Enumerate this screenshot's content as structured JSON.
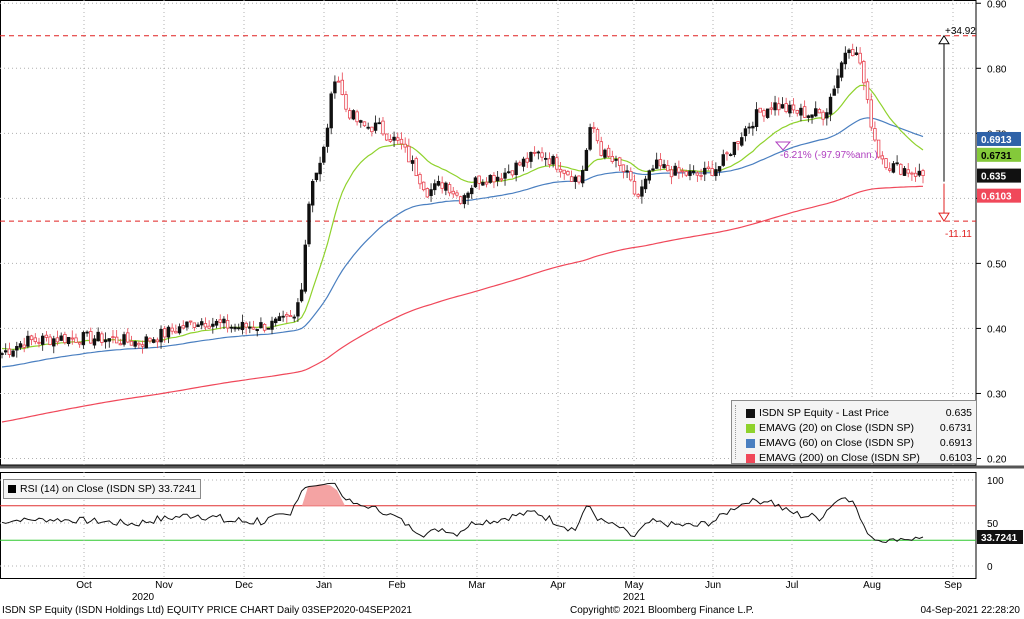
{
  "footer": {
    "left": "ISDN SP Equity (ISDN Holdings Ltd) EQUITY PRICE CHART  Daily 03SEP2020-04SEP2021",
    "center": "Copyright© 2021 Bloomberg Finance L.P.",
    "right": "04-Sep-2021 22:28:20"
  },
  "legend": {
    "items": [
      {
        "label": "ISDN SP Equity - Last Price",
        "value": "0.635",
        "color": "#111111"
      },
      {
        "label": "EMAVG (20)  on Close (ISDN SP)",
        "value": "0.6731",
        "color": "#8fd22c"
      },
      {
        "label": "EMAVG (60)  on Close (ISDN SP)",
        "value": "0.6913",
        "color": "#4a7fc0"
      },
      {
        "label": "EMAVG (200)  on Close (ISDN SP)",
        "value": "0.6103",
        "color": "#f0485a"
      }
    ]
  },
  "rsi_legend": "RSI (14)  on Close (ISDN SP) 33.7241",
  "annotations": {
    "upper_pct": "+34.92",
    "lower_pct": "-11.11",
    "trend_text": "-6.21% (-97.97%ann.)"
  },
  "price_tags": [
    {
      "text": "0.6913",
      "value": 0.6913,
      "bg": "#2f62a8",
      "fg": "#ffffff"
    },
    {
      "text": "0.6731",
      "value": 0.6731,
      "bg": "#84c93a",
      "fg": "#000000"
    },
    {
      "text": "0.635",
      "value": 0.635,
      "bg": "#111111",
      "fg": "#ffffff"
    },
    {
      "text": "0.6103",
      "value": 0.6103,
      "bg": "#f0485a",
      "fg": "#ffffff"
    }
  ],
  "rsi_tag": {
    "text": "33.7241",
    "value": 33.7241,
    "bg": "#111111",
    "fg": "#ffffff"
  },
  "colors": {
    "up": "#111111",
    "down": "#e8424f",
    "hline": "#e02020",
    "rsi_upper": "#e03030",
    "rsi_lower": "#2ec82e",
    "rsi_fill": "#f4a3a3",
    "grid": "#b0b0b0"
  },
  "chart_data": [
    {
      "type": "candlestick",
      "title": "ISDN SP Equity - Last Price",
      "x_ticks": [
        "Oct",
        "Nov",
        "Dec",
        "Jan",
        "Feb",
        "Mar",
        "Apr",
        "May",
        "Jun",
        "Jul",
        "Aug",
        "Sep"
      ],
      "year_labels": [
        "2020",
        "2021"
      ],
      "y_ticks": [
        "0.90",
        "0.80",
        "0.70",
        "0.60",
        "0.50",
        "0.40",
        "0.30",
        "0.20"
      ],
      "ylim": [
        0.19,
        0.905
      ],
      "grid": true,
      "legend_position": "bottom-right",
      "close_monthly": [
        {
          "month": "2020-09",
          "value": 0.37
        },
        {
          "month": "2020-10",
          "value": 0.385
        },
        {
          "month": "2020-11",
          "value": 0.395
        },
        {
          "month": "2020-12",
          "value": 0.41
        },
        {
          "month": "2021-01",
          "value": 0.72
        },
        {
          "month": "2021-02",
          "value": 0.62
        },
        {
          "month": "2021-03",
          "value": 0.61
        },
        {
          "month": "2021-04",
          "value": 0.67
        },
        {
          "month": "2021-05",
          "value": 0.61
        },
        {
          "month": "2021-06",
          "value": 0.63
        },
        {
          "month": "2021-07",
          "value": 0.73
        },
        {
          "month": "2021-08",
          "value": 0.635
        }
      ],
      "series": [
        {
          "name": "EMAVG (20)  on Close (ISDN SP)",
          "last": 0.6731
        },
        {
          "name": "EMAVG (60)  on Close (ISDN SP)",
          "last": 0.6913
        },
        {
          "name": "EMAVG (200)  on Close (ISDN SP)",
          "last": 0.6103
        }
      ],
      "horizontal_lines": [
        0.85,
        0.565
      ],
      "last_price": 0.635,
      "high": 0.85,
      "low": 0.565
    },
    {
      "type": "line",
      "title": "RSI (14)  on Close (ISDN SP)",
      "y_ticks": [
        "100",
        "50",
        "0"
      ],
      "ylim": [
        -10,
        106
      ],
      "thresholds": [
        70,
        30
      ],
      "last": 33.7241
    }
  ]
}
